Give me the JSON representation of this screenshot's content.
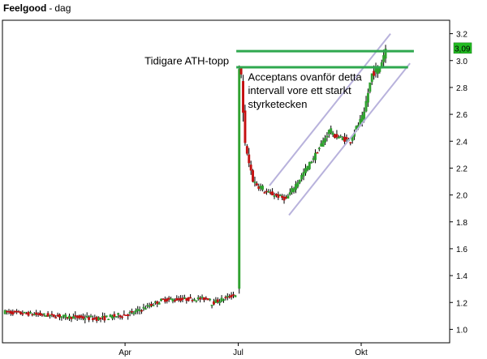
{
  "title": {
    "name": "Feelgood",
    "separator": "-",
    "period": "dag"
  },
  "colors": {
    "up": "#2ea12e",
    "down": "#c41010",
    "level_line": "#2fa84f",
    "channel": "#b8b2dc",
    "badge": "#22bb22",
    "frame": "#000000"
  },
  "chart_data": {
    "type": "candlestick",
    "ylim": [
      0.9,
      3.3
    ],
    "y_ticks": [
      "1.0",
      "1.2",
      "1.4",
      "1.6",
      "1.8",
      "2.0",
      "2.2",
      "2.4",
      "2.6",
      "2.8",
      "3.0",
      "3.2"
    ],
    "x_labels": [
      {
        "label": "Apr",
        "day": 62
      },
      {
        "label": "Jul",
        "day": 120
      },
      {
        "label": "Okt",
        "day": 183
      }
    ],
    "x_range_days": [
      0,
      225
    ],
    "last_price_label": "3,09",
    "last_price": 3.09,
    "segments": [
      {
        "from_day": 0,
        "to_day": 36,
        "start": 1.13,
        "end": 1.09,
        "vol": 0.028
      },
      {
        "from_day": 36,
        "to_day": 50,
        "start": 1.09,
        "end": 1.08,
        "vol": 0.035
      },
      {
        "from_day": 50,
        "to_day": 66,
        "start": 1.08,
        "end": 1.12,
        "vol": 0.035
      },
      {
        "from_day": 66,
        "to_day": 82,
        "start": 1.12,
        "end": 1.22,
        "vol": 0.03
      },
      {
        "from_day": 82,
        "to_day": 106,
        "start": 1.22,
        "end": 1.23,
        "vol": 0.028
      },
      {
        "from_day": 106,
        "to_day": 119,
        "start": 1.19,
        "end": 1.26,
        "vol": 0.03
      },
      {
        "from_day": 120,
        "to_day": 121,
        "start": 1.3,
        "end": 2.92,
        "vol": 0.05
      },
      {
        "from_day": 121,
        "to_day": 122,
        "start": 2.92,
        "end": 2.88,
        "vol": 0.06
      },
      {
        "from_day": 122,
        "to_day": 124,
        "start": 2.85,
        "end": 2.4,
        "vol": 0.1
      },
      {
        "from_day": 124,
        "to_day": 128,
        "start": 2.35,
        "end": 2.12,
        "vol": 0.06
      },
      {
        "from_day": 128,
        "to_day": 133,
        "start": 2.1,
        "end": 2.05,
        "vol": 0.05
      },
      {
        "from_day": 133,
        "to_day": 145,
        "start": 2.03,
        "end": 1.97,
        "vol": 0.03
      },
      {
        "from_day": 145,
        "to_day": 152,
        "start": 1.97,
        "end": 2.12,
        "vol": 0.035
      },
      {
        "from_day": 152,
        "to_day": 160,
        "start": 2.12,
        "end": 2.3,
        "vol": 0.035
      },
      {
        "from_day": 160,
        "to_day": 168,
        "start": 2.3,
        "end": 2.5,
        "vol": 0.035
      },
      {
        "from_day": 168,
        "to_day": 178,
        "start": 2.45,
        "end": 2.4,
        "vol": 0.035
      },
      {
        "from_day": 178,
        "to_day": 185,
        "start": 2.42,
        "end": 2.6,
        "vol": 0.04
      },
      {
        "from_day": 185,
        "to_day": 189,
        "start": 2.62,
        "end": 2.9,
        "vol": 0.05
      },
      {
        "from_day": 189,
        "to_day": 193,
        "start": 2.9,
        "end": 2.95,
        "vol": 0.05
      },
      {
        "from_day": 193,
        "to_day": 196,
        "start": 2.95,
        "end": 3.09,
        "vol": 0.06
      }
    ],
    "level_lines": [
      {
        "from_day": 119,
        "to_day": 210,
        "y": 3.07
      },
      {
        "from_day": 119,
        "to_day": 207,
        "y": 2.95
      }
    ],
    "channel_lines": [
      {
        "from": [
          136,
          2.07
        ],
        "to": [
          198,
          3.2
        ]
      },
      {
        "from": [
          146,
          1.85
        ],
        "to": [
          208,
          2.98
        ]
      }
    ],
    "annotations": [
      {
        "text": "Tidigare ATH-topp",
        "day": 72,
        "y": 2.97
      },
      {
        "text": "Acceptans ovanför detta",
        "day": 125,
        "y": 2.85
      },
      {
        "text": "intervall vore ett starkt",
        "day": 125,
        "y": 2.75
      },
      {
        "text": "styrketecken",
        "day": 125,
        "y": 2.65
      }
    ]
  }
}
